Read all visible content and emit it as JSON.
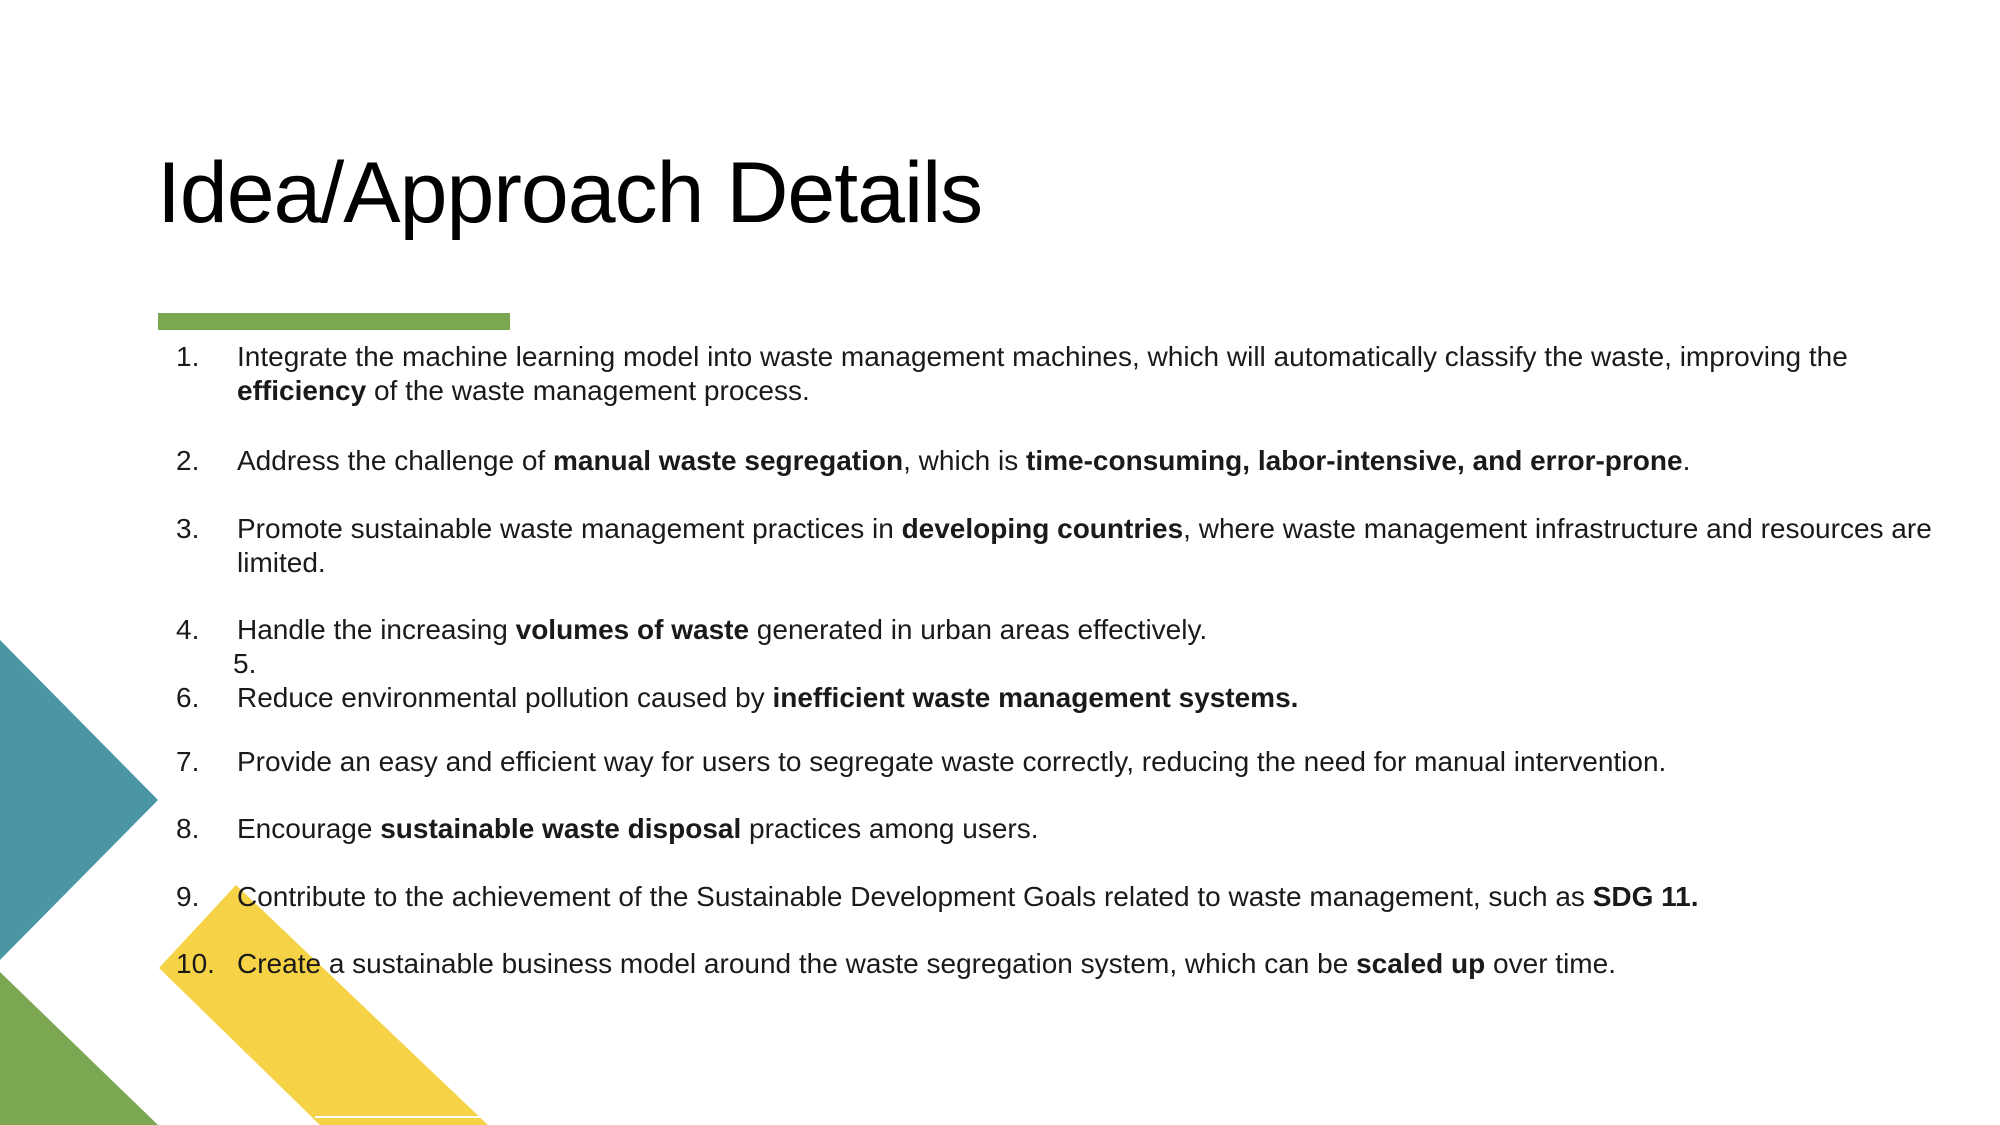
{
  "colors": {
    "accent_green": "#7ba652",
    "teal": "#4a96a4",
    "yellow": "#f5d246",
    "green": "#7ba652"
  },
  "slide": {
    "title": "Idea/Approach Details",
    "items": [
      {
        "number": "1.",
        "segments": [
          {
            "text": "Integrate the machine learning model into waste management machines, which will automatically classify the waste, improving the ",
            "bold": false
          },
          {
            "text": "efficiency",
            "bold": true
          },
          {
            "text": " of the waste management process.",
            "bold": false
          }
        ]
      },
      {
        "number": "2.",
        "segments": [
          {
            "text": "Address the challenge of ",
            "bold": false
          },
          {
            "text": "manual waste segregation",
            "bold": true
          },
          {
            "text": ", which is ",
            "bold": false
          },
          {
            "text": "time-consuming, labor-intensive, and error-prone",
            "bold": true
          },
          {
            "text": ".",
            "bold": false
          }
        ]
      },
      {
        "number": "3.",
        "segments": [
          {
            "text": "Promote sustainable waste management practices in ",
            "bold": false
          },
          {
            "text": "developing countries",
            "bold": true
          },
          {
            "text": ", where waste management infrastructure and resources are limited.",
            "bold": false
          }
        ]
      },
      {
        "number": "4.",
        "segments": [
          {
            "text": "Handle the increasing ",
            "bold": false
          },
          {
            "text": "volumes of waste",
            "bold": true
          },
          {
            "text": " generated in urban areas effectively.",
            "bold": false
          }
        ]
      },
      {
        "number": "5.",
        "segments": []
      },
      {
        "number": "6.",
        "segments": [
          {
            "text": "Reduce environmental pollution caused by ",
            "bold": false
          },
          {
            "text": "inefficient waste management systems.",
            "bold": true
          }
        ]
      },
      {
        "number": "7.",
        "segments": [
          {
            "text": "Provide an easy and efficient way for users to segregate waste correctly, reducing the need for manual intervention.",
            "bold": false
          }
        ]
      },
      {
        "number": "8.",
        "segments": [
          {
            "text": "Encourage ",
            "bold": false
          },
          {
            "text": "sustainable waste disposal",
            "bold": true
          },
          {
            "text": " practices among users.",
            "bold": false
          }
        ]
      },
      {
        "number": "9.",
        "segments": [
          {
            "text": "Contribute to the achievement of the Sustainable Development Goals related to waste management, such as ",
            "bold": false
          },
          {
            "text": "SDG 11.",
            "bold": true
          }
        ]
      },
      {
        "number": "10.",
        "segments": [
          {
            "text": "Create a sustainable business model around the waste segregation system, which can be ",
            "bold": false
          },
          {
            "text": "scaled up",
            "bold": true
          },
          {
            "text": " over time.",
            "bold": false
          }
        ]
      }
    ]
  }
}
